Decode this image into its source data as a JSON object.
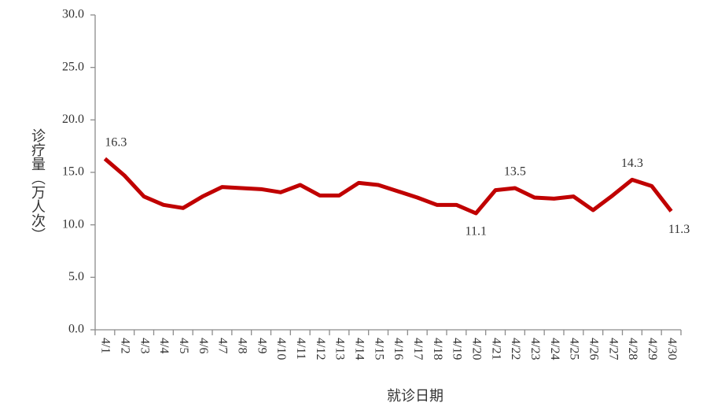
{
  "chart_data": {
    "type": "line",
    "y_label": "诊疗量（万人次）",
    "x_label": "就诊日期",
    "categories": [
      "4/1",
      "4/2",
      "4/3",
      "4/4",
      "4/5",
      "4/6",
      "4/7",
      "4/8",
      "4/9",
      "4/10",
      "4/11",
      "4/12",
      "4/13",
      "4/14",
      "4/15",
      "4/16",
      "4/17",
      "4/18",
      "4/19",
      "4/20",
      "4/21",
      "4/22",
      "4/23",
      "4/24",
      "4/25",
      "4/26",
      "4/27",
      "4/28",
      "4/29",
      "4/30"
    ],
    "values": [
      16.3,
      14.7,
      12.7,
      11.9,
      11.6,
      12.7,
      13.6,
      13.5,
      13.4,
      13.1,
      13.8,
      12.8,
      12.8,
      14.0,
      13.8,
      13.2,
      12.6,
      11.9,
      11.9,
      11.1,
      13.3,
      13.5,
      12.6,
      12.5,
      12.7,
      11.4,
      12.8,
      14.3,
      13.7,
      11.3
    ],
    "value_labels": [
      "16.3",
      null,
      null,
      null,
      null,
      null,
      null,
      null,
      null,
      null,
      null,
      null,
      null,
      null,
      null,
      null,
      null,
      null,
      null,
      "11.1",
      null,
      "13.5",
      null,
      null,
      null,
      null,
      null,
      "14.3",
      null,
      "11.3"
    ],
    "color": "#c00000",
    "ylim": [
      0,
      30
    ],
    "yticks": [
      {
        "value": 0,
        "label": "0.0"
      },
      {
        "value": 5,
        "label": "5.0"
      },
      {
        "value": 10,
        "label": "10.0"
      },
      {
        "value": 15,
        "label": "15.0"
      },
      {
        "value": 20,
        "label": "20.0"
      },
      {
        "value": 25,
        "label": "25.0"
      },
      {
        "value": 30,
        "label": "30.0"
      }
    ],
    "grid": false
  }
}
